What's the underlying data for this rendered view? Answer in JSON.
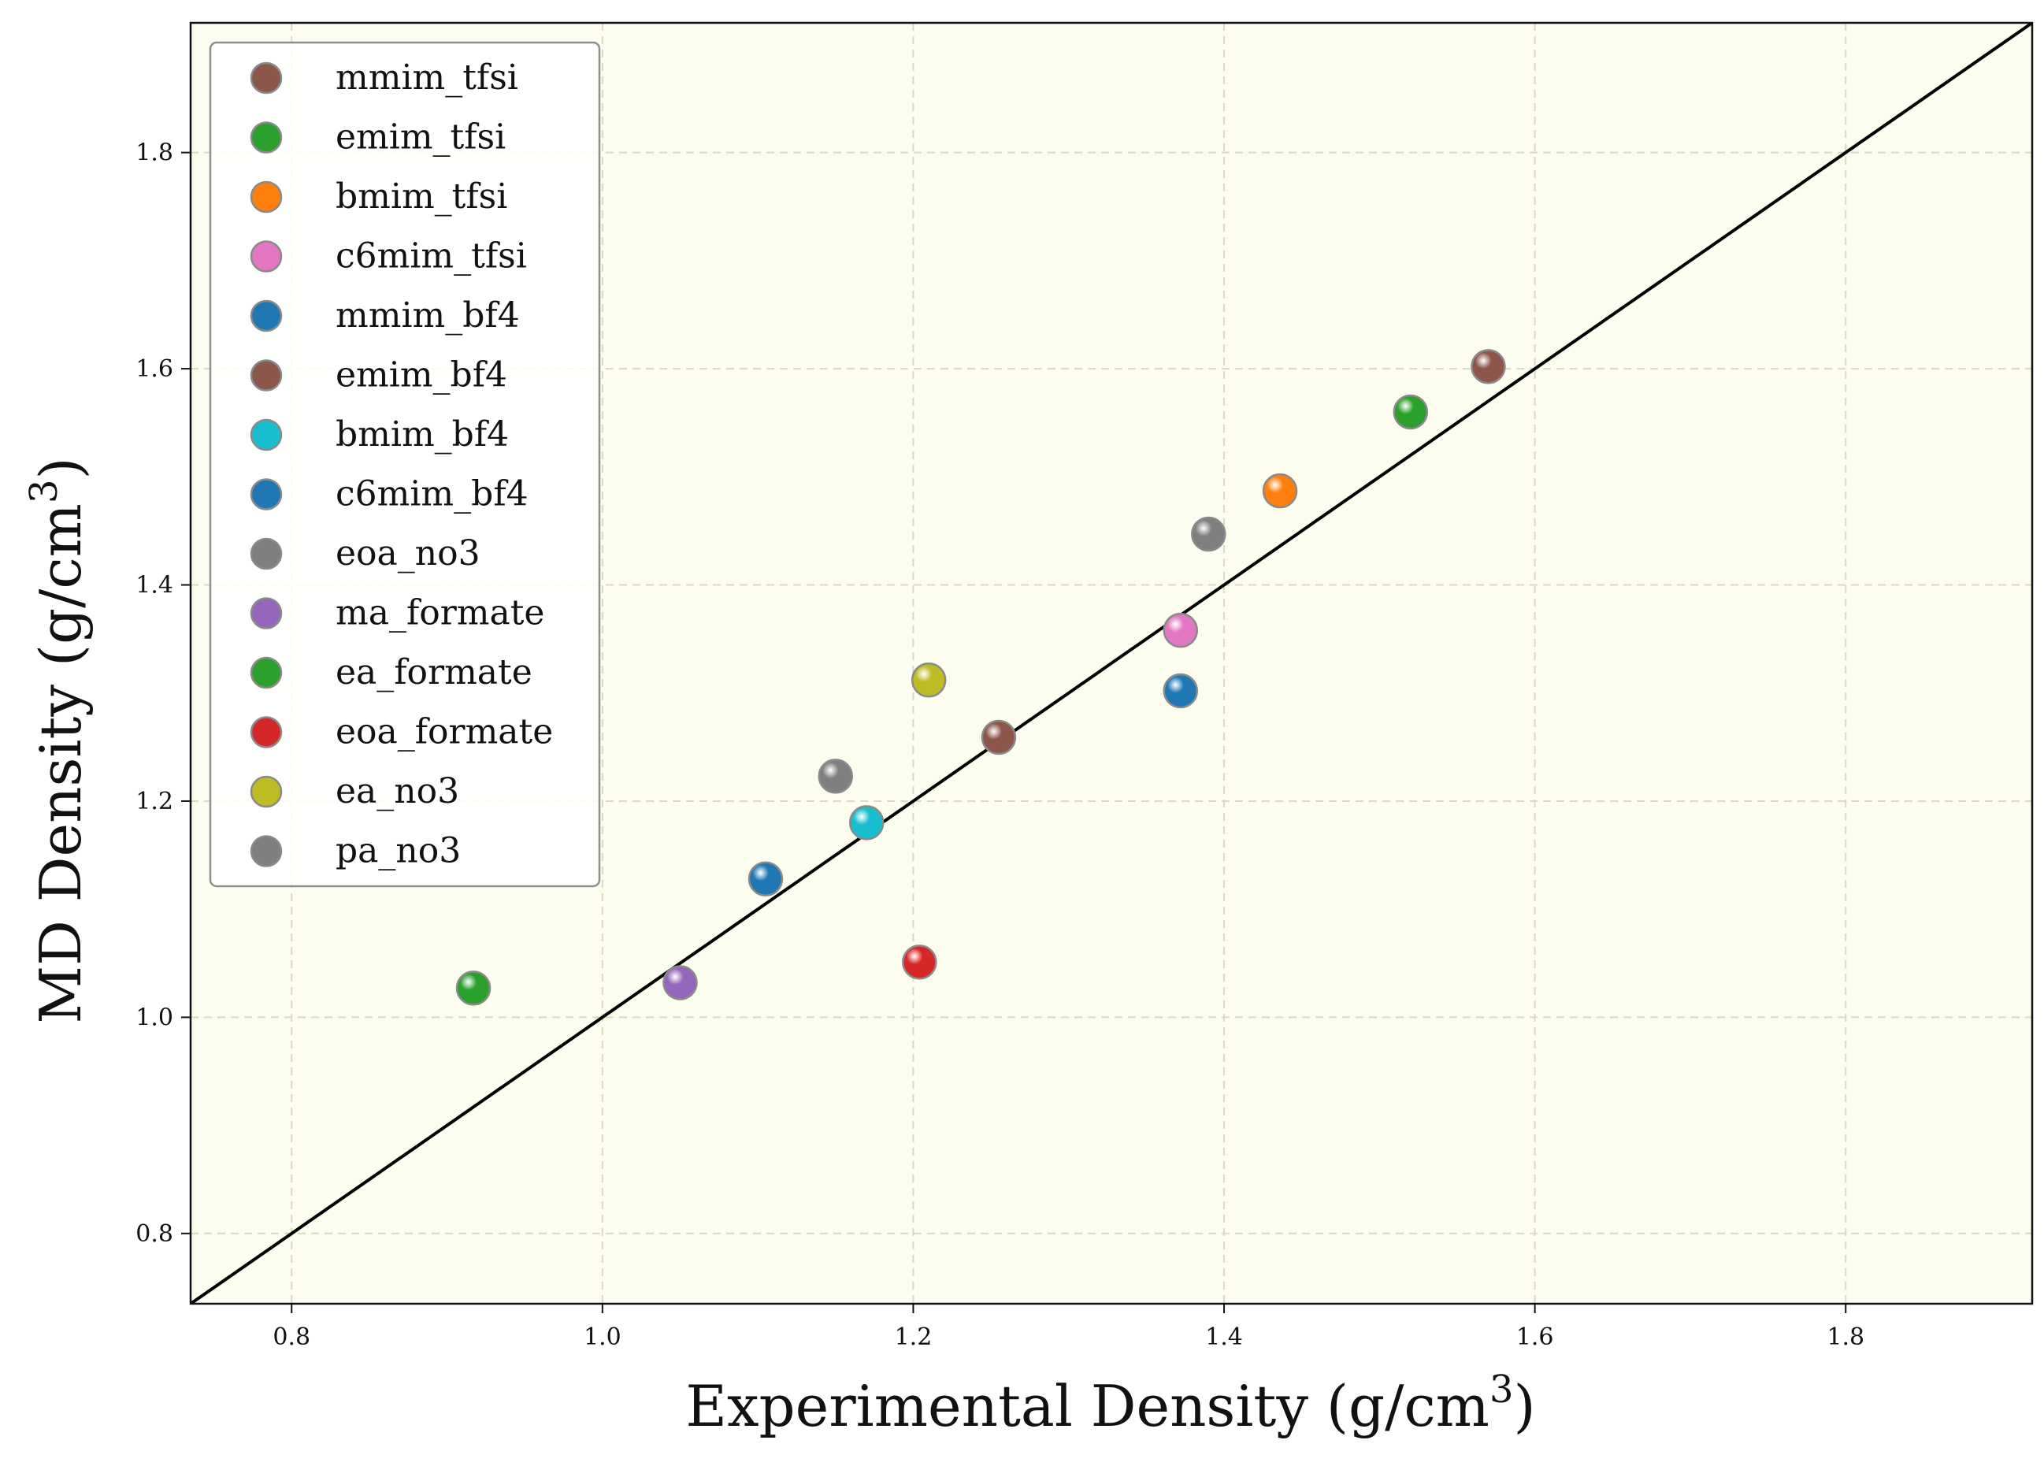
{
  "chart_data": {
    "type": "scatter",
    "title": "",
    "xlabel_main": "Experimental Density (g/cm",
    "xlabel_sup": "3",
    "xlabel_end": ")",
    "ylabel_main": "MD Density (g/cm",
    "ylabel_sup": "3",
    "ylabel_end": ")",
    "xlim": [
      0.735,
      1.92
    ],
    "ylim": [
      0.735,
      1.92
    ],
    "xticks": [
      0.8,
      1.0,
      1.2,
      1.4,
      1.6,
      1.8
    ],
    "yticks": [
      0.8,
      1.0,
      1.2,
      1.4,
      1.6,
      1.8
    ],
    "grid": true,
    "reference_line": "y = x",
    "legend_position": "upper-left",
    "background_color": "#fdfdef",
    "series": [
      {
        "name": "mmim_tfsi",
        "color": "#8c564b",
        "x": 1.57,
        "y": 1.602
      },
      {
        "name": "emim_tfsi",
        "color": "#2ca02c",
        "x": 1.52,
        "y": 1.56
      },
      {
        "name": "bmim_tfsi",
        "color": "#ff7f0e",
        "x": 1.436,
        "y": 1.487
      },
      {
        "name": "c6mim_tfsi",
        "color": "#e377c2",
        "x": 1.372,
        "y": 1.358
      },
      {
        "name": "mmim_bf4",
        "color": "#1f77b4",
        "x": 1.372,
        "y": 1.302
      },
      {
        "name": "emim_bf4",
        "color": "#8c564b",
        "x": 1.255,
        "y": 1.259
      },
      {
        "name": "bmim_bf4",
        "color": "#17becf",
        "x": 1.17,
        "y": 1.18
      },
      {
        "name": "c6mim_bf4",
        "color": "#1f77b4",
        "x": 1.105,
        "y": 1.128
      },
      {
        "name": "eoa_no3",
        "color": "#7f7f7f",
        "x": 1.39,
        "y": 1.447
      },
      {
        "name": "ma_formate",
        "color": "#9467bd",
        "x": 1.05,
        "y": 1.032
      },
      {
        "name": "ea_formate",
        "color": "#2ca02c",
        "x": 0.917,
        "y": 1.027
      },
      {
        "name": "eoa_formate",
        "color": "#d62728",
        "x": 1.204,
        "y": 1.051
      },
      {
        "name": "ea_no3",
        "color": "#bcbd22",
        "x": 1.21,
        "y": 1.312
      },
      {
        "name": "pa_no3",
        "color": "#7f7f7f",
        "x": 1.15,
        "y": 1.223
      }
    ]
  }
}
